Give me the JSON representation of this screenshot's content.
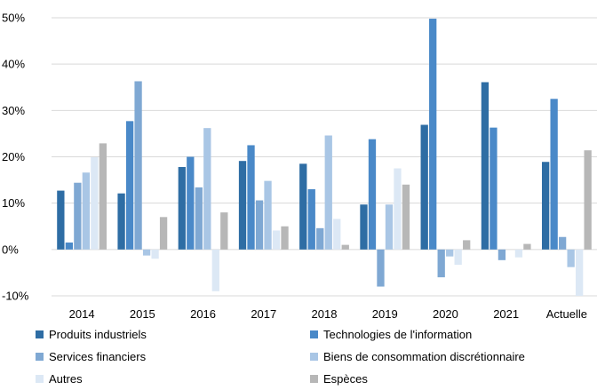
{
  "chart_data": {
    "type": "bar",
    "title": "",
    "xlabel": "",
    "ylabel": "",
    "categories": [
      "2014",
      "2015",
      "2016",
      "2017",
      "2018",
      "2019",
      "2020",
      "2021",
      "Actuelle"
    ],
    "ylim": [
      -10,
      50
    ],
    "yticks": [
      -10,
      0,
      10,
      20,
      30,
      40,
      50
    ],
    "ytick_labels": [
      "-10%",
      "0%",
      "10%",
      "20%",
      "30%",
      "40%",
      "50%"
    ],
    "grid": true,
    "legend_position": "bottom",
    "series": [
      {
        "name": "Produits industriels",
        "color": "#2E6DA4",
        "values": [
          12.7,
          12.1,
          17.8,
          19.1,
          18.5,
          9.7,
          26.9,
          36.1,
          18.9
        ]
      },
      {
        "name": "Technologies de l'information",
        "color": "#4A89C8",
        "values": [
          1.5,
          27.7,
          20.0,
          22.5,
          13.0,
          23.8,
          49.8,
          26.3,
          32.5
        ]
      },
      {
        "name": "Services financiers",
        "color": "#7FA8D3",
        "values": [
          14.4,
          36.3,
          13.4,
          10.6,
          4.6,
          -8.0,
          -6.0,
          -2.3,
          2.7
        ]
      },
      {
        "name": "Biens de consommation discrétionnaire",
        "color": "#A9C6E5",
        "values": [
          16.6,
          -1.3,
          26.2,
          14.8,
          24.6,
          9.7,
          -1.5,
          0.0,
          -3.8
        ]
      },
      {
        "name": "Autres",
        "color": "#DCE8F5",
        "values": [
          19.9,
          -2.0,
          -9.0,
          4.1,
          6.6,
          17.5,
          -3.3,
          -1.7,
          -10.0
        ]
      },
      {
        "name": "Espèces",
        "color": "#B7B7B7",
        "values": [
          22.9,
          7.0,
          8.0,
          5.0,
          1.0,
          14.0,
          2.0,
          1.2,
          21.4
        ]
      }
    ]
  }
}
